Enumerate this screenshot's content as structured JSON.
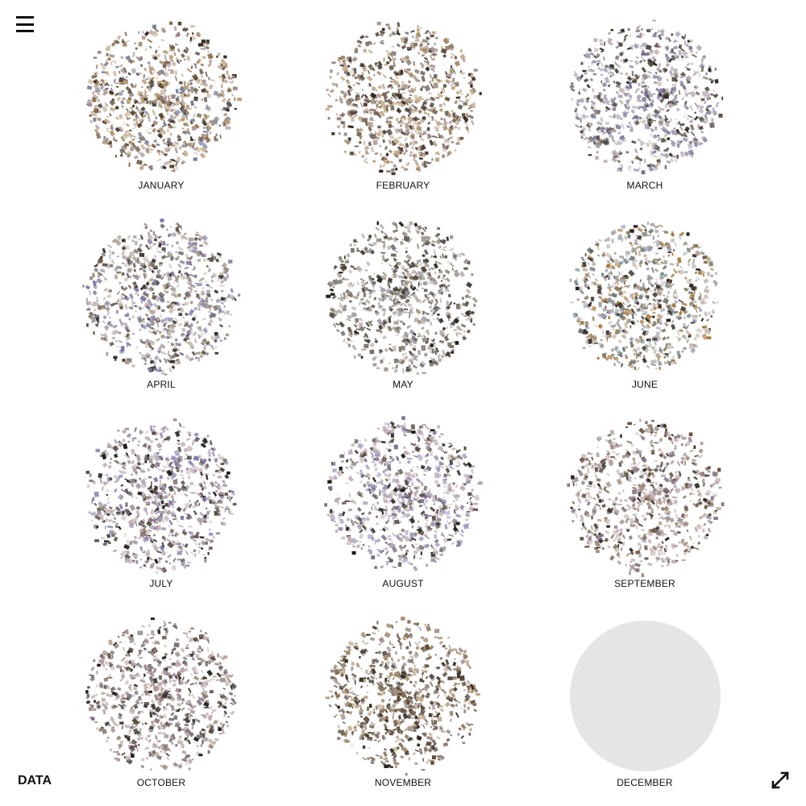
{
  "nav": {
    "menu_icon": "hamburger-menu-icon"
  },
  "months": [
    {
      "label": "JANUARY",
      "tones": [
        "#8a6a45",
        "#b89a74",
        "#3a2f25",
        "#a58c8c",
        "#7a7f99",
        "#c9b69a",
        "#5c4a35"
      ],
      "empty": false
    },
    {
      "label": "FEBRUARY",
      "tones": [
        "#a08562",
        "#c7ad8a",
        "#2f2620",
        "#9c8a88",
        "#6d5a47",
        "#b3998a",
        "#4a3d30"
      ],
      "empty": false
    },
    {
      "label": "MARCH",
      "tones": [
        "#8f8aa8",
        "#b7a9b0",
        "#2e2822",
        "#a8a6b8",
        "#6f6a8c",
        "#c4b3ae",
        "#5a4d40"
      ],
      "empty": false
    },
    {
      "label": "APRIL",
      "tones": [
        "#8d88a8",
        "#b0a3a0",
        "#3b332b",
        "#a99d93",
        "#7b76a0",
        "#c9bbb0",
        "#6b5a45"
      ],
      "empty": false
    },
    {
      "label": "MAY",
      "tones": [
        "#7f7a6a",
        "#a99d93",
        "#24201c",
        "#9e9aa8",
        "#6d6355",
        "#bcb0a6",
        "#4a4238"
      ],
      "empty": false
    },
    {
      "label": "JUNE",
      "tones": [
        "#9aa1b0",
        "#b5a8a2",
        "#2a241f",
        "#8f7a5a",
        "#6a7a7a",
        "#c7b9b0",
        "#a47a3a"
      ],
      "empty": false
    },
    {
      "label": "JULY",
      "tones": [
        "#9b94b0",
        "#b8a6ad",
        "#1c1916",
        "#a592a0",
        "#7a70a8",
        "#c9b4b4",
        "#5c4e45"
      ],
      "empty": false
    },
    {
      "label": "AUGUST",
      "tones": [
        "#9d95b5",
        "#c0a8b0",
        "#1f1b17",
        "#a4a0c4",
        "#7b6f8f",
        "#c9b8b2",
        "#5a4a3e"
      ],
      "empty": false
    },
    {
      "label": "SEPTEMBER",
      "tones": [
        "#b0a0a8",
        "#c7b2b0",
        "#2b241e",
        "#a08a78",
        "#8a7a8a",
        "#d1c0ba",
        "#6a5440"
      ],
      "empty": false
    },
    {
      "label": "OCTOBER",
      "tones": [
        "#a8949c",
        "#c4b0b0",
        "#24201b",
        "#9a8678",
        "#7d6f80",
        "#b9a49e",
        "#5a4b3d"
      ],
      "empty": false
    },
    {
      "label": "NOVEMBER",
      "tones": [
        "#7a6450",
        "#a38a6a",
        "#2a221b",
        "#9c8a8a",
        "#5e4c3a",
        "#bba488",
        "#4a3b2c"
      ],
      "empty": false
    },
    {
      "label": "DECEMBER",
      "tones": [],
      "empty": true
    }
  ],
  "footer": {
    "data_label": "DATA",
    "fullscreen_icon": "expand-fullscreen-icon"
  },
  "colors": {
    "placeholder": "#e5e5e5",
    "text": "#111111",
    "background": "#ffffff"
  }
}
